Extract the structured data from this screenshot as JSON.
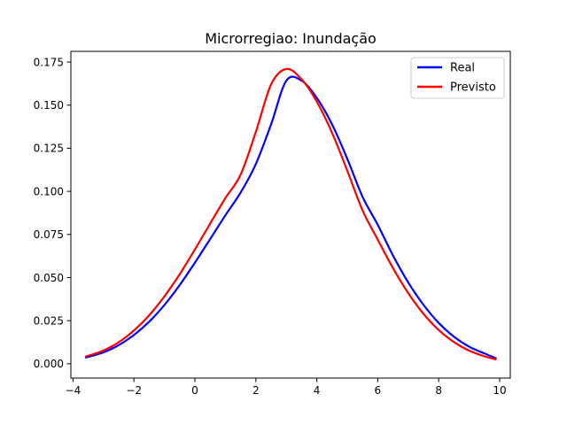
{
  "chart_data": {
    "type": "line",
    "title": "Microrregiao: Inundação",
    "xlabel": "",
    "ylabel": "",
    "xlim": [
      -4.07,
      10.35
    ],
    "ylim": [
      -0.0083,
      0.1812
    ],
    "x_ticks": [
      -4,
      -2,
      0,
      2,
      4,
      6,
      8,
      10
    ],
    "x_tick_labels": [
      "−4",
      "−2",
      "0",
      "2",
      "4",
      "6",
      "8",
      "10"
    ],
    "y_ticks": [
      0.0,
      0.025,
      0.05,
      0.075,
      0.1,
      0.125,
      0.15,
      0.175
    ],
    "y_tick_labels": [
      "0.000",
      "0.025",
      "0.050",
      "0.075",
      "0.100",
      "0.125",
      "0.150",
      "0.175"
    ],
    "grid": false,
    "legend_position": "top-right",
    "series": [
      {
        "name": "Real",
        "color": "#0000ff",
        "x": [
          -3.6,
          -3.0,
          -2.5,
          -2.0,
          -1.5,
          -1.0,
          -0.5,
          0.0,
          0.5,
          1.0,
          1.5,
          2.0,
          2.5,
          3.0,
          3.5,
          4.0,
          4.5,
          5.0,
          5.5,
          6.0,
          6.5,
          7.0,
          7.5,
          8.0,
          8.5,
          9.0,
          9.5,
          9.9
        ],
        "y": [
          0.0035,
          0.0066,
          0.0108,
          0.0167,
          0.0244,
          0.0341,
          0.0456,
          0.0586,
          0.0723,
          0.0861,
          0.0993,
          0.1159,
          0.1389,
          0.1642,
          0.1642,
          0.1542,
          0.1389,
          0.1189,
          0.0969,
          0.0806,
          0.0628,
          0.0472,
          0.0342,
          0.0237,
          0.0157,
          0.0099,
          0.006,
          0.003
        ]
      },
      {
        "name": "Previsto",
        "color": "#ff0000",
        "x": [
          -3.6,
          -3.0,
          -2.5,
          -2.0,
          -1.5,
          -1.0,
          -0.5,
          0.0,
          0.5,
          1.0,
          1.5,
          2.0,
          2.5,
          3.0,
          3.5,
          4.0,
          4.5,
          5.0,
          5.5,
          6.0,
          6.5,
          7.0,
          7.5,
          8.0,
          8.5,
          9.0,
          9.5,
          9.9
        ],
        "y": [
          0.0041,
          0.0077,
          0.0125,
          0.0193,
          0.0281,
          0.0391,
          0.0519,
          0.0663,
          0.0813,
          0.0961,
          0.1097,
          0.1345,
          0.162,
          0.171,
          0.165,
          0.152,
          0.134,
          0.112,
          0.089,
          0.072,
          0.0555,
          0.041,
          0.029,
          0.0196,
          0.0126,
          0.0076,
          0.0043,
          0.0025
        ]
      }
    ]
  }
}
